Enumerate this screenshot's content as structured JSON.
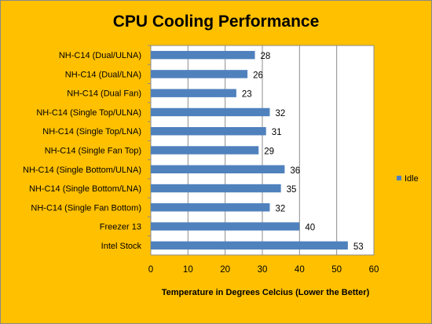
{
  "chart_data": {
    "type": "bar",
    "orientation": "horizontal",
    "title": "CPU Cooling Performance",
    "xlabel": "Temperature in Degrees Celcius (Lower the Better)",
    "ylabel": "",
    "xlim": [
      0,
      60
    ],
    "ticks": [
      "0",
      "10",
      "20",
      "30",
      "40",
      "50",
      "60"
    ],
    "grid": true,
    "legend_position": "right",
    "categories": [
      "NH-C14 (Dual/ULNA)",
      "NH-C14 (Dual/LNA)",
      "NH-C14 (Dual Fan)",
      "NH-C14 (Single Top/ULNA)",
      "NH-C14 (Single Top/LNA)",
      "NH-C14 (Single Fan Top)",
      "NH-C14 (Single Bottom/ULNA)",
      "NH-C14 (Single Bottom/LNA)",
      "NH-C14 (Single Fan Bottom)",
      "Freezer 13",
      "Intel Stock"
    ],
    "series": [
      {
        "name": "Idle",
        "color": "#4f81bd",
        "values": [
          28,
          26,
          23,
          32,
          31,
          29,
          36,
          35,
          32,
          40,
          53
        ],
        "labels": [
          "28",
          "26",
          "23",
          "32",
          "31",
          "29",
          "36",
          "35",
          "32",
          "40",
          "53"
        ]
      }
    ],
    "colors": {
      "background": "#ffc000",
      "plot_area": "#ffffff",
      "gridline": "#8c8c8c"
    }
  }
}
